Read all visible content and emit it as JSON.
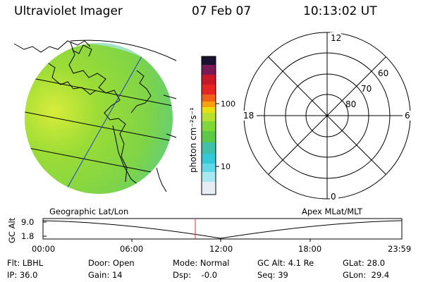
{
  "header": {
    "title": "Ultraviolet Imager",
    "date": "07 Feb 07",
    "time": "10:13:02 UT"
  },
  "colorbar": {
    "unit_label": "photon cm⁻²s⁻¹",
    "ticks": [
      "100",
      "10"
    ]
  },
  "polar_plot": {
    "mlt_labels": {
      "top": "12",
      "left": "18",
      "right": "6",
      "bottom": "0"
    },
    "mlat_labels": [
      "60",
      "70",
      "80"
    ]
  },
  "timeline": {
    "left_label": "Geographic Lat/Lon",
    "right_label": "Apex MLat/MLT",
    "axis_title": "GC Alt",
    "y_ticks": [
      "9.0",
      "1.8"
    ],
    "x_ticks": [
      "00:00",
      "06:00",
      "12:00",
      "18:00",
      "23:59"
    ]
  },
  "info": {
    "row1": {
      "filter": "Flt: LBHL",
      "door": "Door: Open",
      "mode": "Mode: Normal",
      "gc_alt": "GC Alt: 4.1 Re",
      "glat": "GLat: 28.0"
    },
    "row2": {
      "ip": "IP: 36.0",
      "gain": "Gain: 14",
      "dsp": "Dsp:    -0.0",
      "seq": "Seq: 39",
      "glon": "GLon:  29.4"
    }
  },
  "colors": {
    "image_base": "#8fd83a",
    "map_lines": "#000000",
    "grid_lines": "#1f3fd0",
    "marker": "#e03030"
  }
}
